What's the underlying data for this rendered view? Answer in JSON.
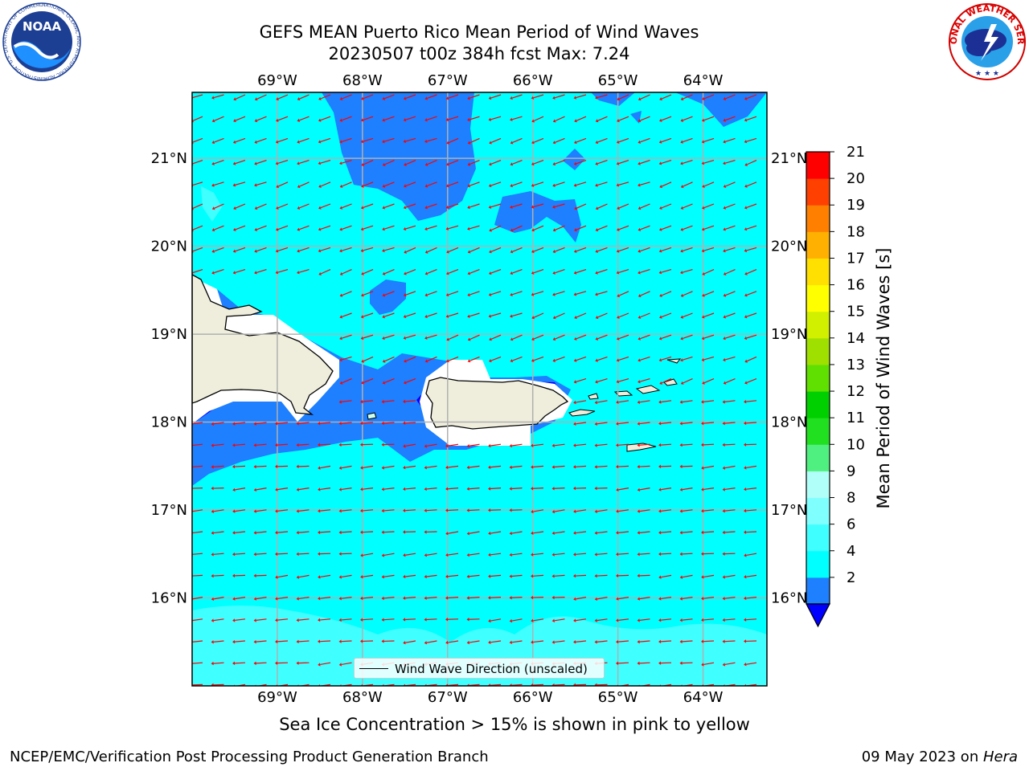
{
  "header": {
    "title_line1": "GEFS MEAN Puerto Rico Mean Period of Wind Waves",
    "title_line2": "20230507 t00z 384h fcst   Max: 7.24"
  },
  "logos": {
    "left": "noaa-logo",
    "left_text": "NOAA",
    "left_ring_text": "NATIONAL OCEANIC AND ATMOSPHERIC ADMINISTRATION · U.S. DEPARTMENT OF COMMERCE",
    "right": "national-weather-service-logo",
    "right_ring_text": "NATIONAL WEATHER SERVICE"
  },
  "map": {
    "lon_ticks": [
      "69°W",
      "68°W",
      "67°W",
      "66°W",
      "65°W",
      "64°W"
    ],
    "lat_ticks": [
      "21°N",
      "20°N",
      "19°N",
      "18°N",
      "17°N",
      "16°N"
    ],
    "lon_values": [
      -69,
      -68,
      -67,
      -66,
      -65,
      -64
    ],
    "lat_values": [
      21,
      20,
      19,
      18,
      17,
      16
    ],
    "lon_range": [
      -70,
      -63.25
    ],
    "lat_range": [
      15.0,
      21.75
    ],
    "grid": true,
    "land_color": "#efeedd",
    "ocean_color_main": "#00ffff",
    "wave_arrow_color": "#ff0000",
    "wave_arrow_direction": "toward southwest / west",
    "legend_text": "Wind Wave Direction (unscaled)"
  },
  "colorbar": {
    "title": "Mean Period of Wind Waves [s]",
    "levels": [
      2,
      4,
      6,
      8,
      9,
      10,
      11,
      12,
      13,
      14,
      15,
      16,
      17,
      18,
      19,
      20,
      21
    ],
    "labels": [
      "21",
      "20",
      "19",
      "18",
      "17",
      "16",
      "15",
      "14",
      "13",
      "12",
      "11",
      "10",
      "9",
      "8",
      "6",
      "4",
      "2"
    ],
    "colors": [
      "#1e7fff",
      "#00ffff",
      "#40ffff",
      "#80ffff",
      "#b0fff8",
      "#50f080",
      "#20e020",
      "#00d000",
      "#60e000",
      "#a0e000",
      "#d0f000",
      "#ffff00",
      "#ffe000",
      "#ffb000",
      "#ff8000",
      "#ff4000",
      "#ff0000"
    ],
    "under_color": "#0000ff"
  },
  "footer": {
    "note": "Sea Ice Concentration > 15% is shown in pink to yellow",
    "left": "NCEP/EMC/Verification Post Processing Product Generation Branch",
    "right_date": "09 May 2023 on ",
    "right_host": "Hera"
  }
}
